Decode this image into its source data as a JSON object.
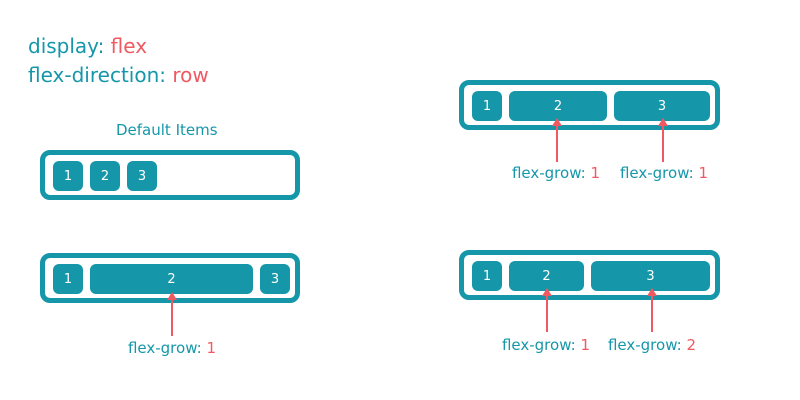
{
  "heading": {
    "display_prop": "display",
    "display_value": "flex",
    "direction_prop": "flex-direction",
    "direction_value": "row"
  },
  "default_caption": "Default Items",
  "sep": ":",
  "flex_grow_prop": "flex-grow",
  "examples": {
    "default": {
      "items": [
        "1",
        "2",
        "3"
      ]
    },
    "grow_middle": {
      "items": [
        "1",
        "2",
        "3"
      ],
      "labels": [
        {
          "value": "1"
        }
      ]
    },
    "grow_equal": {
      "items": [
        "1",
        "2",
        "3"
      ],
      "labels": [
        {
          "value": "1"
        },
        {
          "value": "1"
        }
      ]
    },
    "grow_weighted": {
      "items": [
        "1",
        "2",
        "3"
      ],
      "labels": [
        {
          "value": "1"
        },
        {
          "value": "2"
        }
      ]
    }
  },
  "colors": {
    "teal": "#1597a9",
    "red": "#ef5a62",
    "background": "#ffffff"
  }
}
